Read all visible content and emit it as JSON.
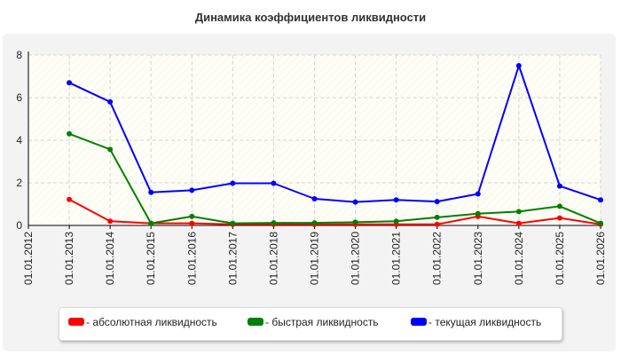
{
  "chart_data": {
    "type": "line",
    "title": "Динамика коэффициентов ликвидности",
    "x": [
      "01.01.2012",
      "01.01.2013",
      "01.01.2014",
      "01.01.2015",
      "01.01.2016",
      "01.01.2017",
      "01.01.2018",
      "01.01.2019",
      "01.01.2020",
      "01.01.2021",
      "01.01.2022",
      "01.01.2023",
      "01.01.2024",
      "01.01.2025",
      "01.01.2026"
    ],
    "ylim": [
      0,
      8
    ],
    "yticks": [
      "0",
      "2",
      "4",
      "6",
      "8"
    ],
    "grid": true,
    "legend_position": "bottom",
    "series": [
      {
        "label": "- абсолютная ликвидность",
        "color": "#ff0000",
        "values": [
          null,
          1.22,
          0.2,
          0.1,
          0.1,
          0.05,
          0.05,
          0.05,
          0.05,
          0.05,
          0.05,
          0.42,
          0.1,
          0.35,
          0.05
        ]
      },
      {
        "label": "- быстрая ликвидность",
        "color": "#008000",
        "values": [
          null,
          4.3,
          3.57,
          0.1,
          0.42,
          0.1,
          0.12,
          0.12,
          0.15,
          0.2,
          0.38,
          0.55,
          0.65,
          0.9,
          0.1
        ]
      },
      {
        "label": "- текущая ликвидность",
        "color": "#0000ff",
        "values": [
          null,
          6.7,
          5.8,
          1.55,
          1.65,
          1.98,
          1.98,
          1.25,
          1.1,
          1.2,
          1.12,
          1.48,
          7.5,
          1.85,
          1.2
        ]
      }
    ]
  }
}
